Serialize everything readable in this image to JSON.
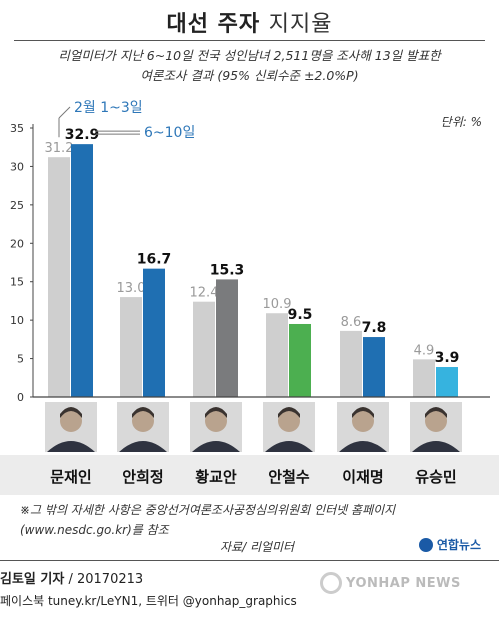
{
  "title_bold": "대선 주자",
  "title_light": "지지율",
  "subtitle_line1": "리얼미터가 지난 6~10일 전국 성인남녀 2,511명을 조사해 13일 발표한",
  "subtitle_line2": "여론조사 결과 (95% 신뢰수준 ±2.0%P)",
  "unit_label": "단위: %",
  "footnote_line1": "※그 밖의 자세한 사항은 중앙선거여론조사공정심의위원회 인터넷 홈페이지",
  "footnote_line2": "(www.nesdc.go.kr)를 참조",
  "source": "자료/ 리얼미터",
  "logo_text": "연합뉴스",
  "credit_name": "김토일 기자",
  "credit_date": "/ 20170213",
  "sns": "페이스북 tuney.kr/LeYN1, 트위터 @yonhap_graphics",
  "watermark": "YONHAP NEWS",
  "chart_data": {
    "type": "bar",
    "title": "대선 주자 지지율",
    "ylabel": "",
    "ylim": [
      0,
      35
    ],
    "yticks": [
      "0",
      "5",
      "10",
      "15",
      "20",
      "25",
      "30",
      "35"
    ],
    "yticks_values": [
      0,
      5,
      10,
      15,
      20,
      25,
      30,
      35
    ],
    "categories": [
      "문재인",
      "안희정",
      "황교안",
      "안철수",
      "이재명",
      "유승민"
    ],
    "series": [
      {
        "name": "2월 1~3일",
        "values": [
          31.2,
          13.0,
          12.4,
          10.9,
          8.6,
          4.9
        ],
        "labels": [
          "31.2",
          "13.0",
          "12.4",
          "10.9",
          "8.6",
          "4.9"
        ]
      },
      {
        "name": "6~10일",
        "values": [
          32.9,
          16.7,
          15.3,
          9.5,
          7.8,
          3.9
        ],
        "labels": [
          "32.9",
          "16.7",
          "15.3",
          "9.5",
          "7.8",
          "3.9"
        ]
      }
    ],
    "colors": {
      "previous": "#cfcfcf",
      "current": [
        "#1f6fb2",
        "#1f6fb2",
        "#7a7b7d",
        "#4caf50",
        "#1f6fb2",
        "#36b3df"
      ],
      "series_label": "#2e77b8"
    },
    "grid": false,
    "legend": "annotations near first bar pair"
  }
}
